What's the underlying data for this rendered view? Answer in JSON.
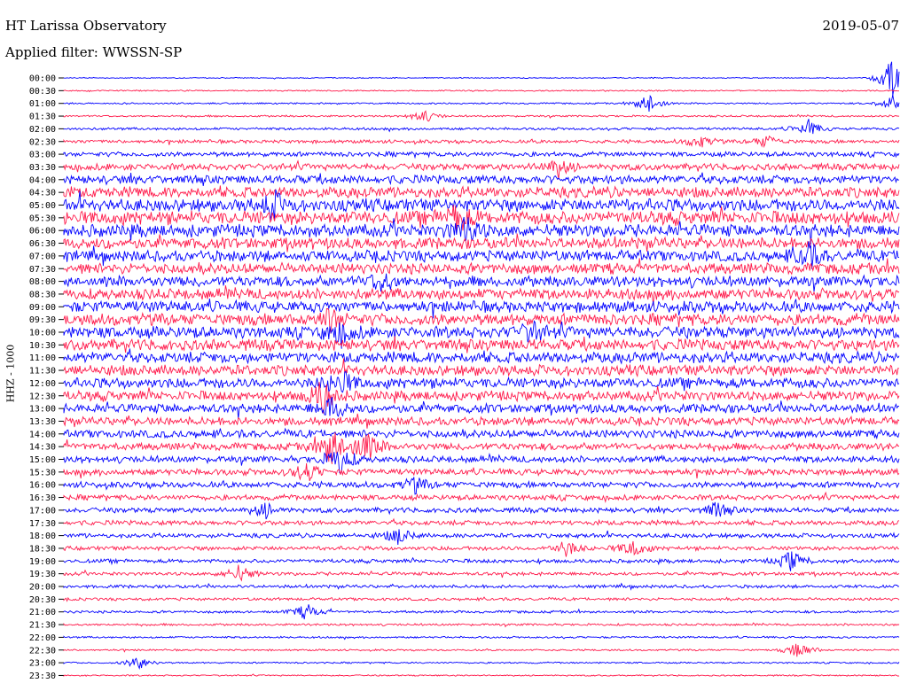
{
  "header": {
    "station": "HT Larissa Observatory",
    "date": "2019-05-07",
    "filter": "Applied filter: WWSSN-SP"
  },
  "chart_data": {
    "type": "line",
    "ylabel": "HHZ - 1000",
    "xlabel": "",
    "grid": false,
    "legend": "none",
    "colors": {
      "even_row": "#0000ff",
      "odd_row": "#ff1a4b"
    },
    "rows": [
      "00:00",
      "00:30",
      "01:00",
      "01:30",
      "02:00",
      "02:30",
      "03:00",
      "03:30",
      "04:00",
      "04:30",
      "05:00",
      "05:30",
      "06:00",
      "06:30",
      "07:00",
      "07:30",
      "08:00",
      "08:30",
      "09:00",
      "09:30",
      "10:00",
      "10:30",
      "11:00",
      "11:30",
      "12:00",
      "12:30",
      "13:00",
      "13:30",
      "14:00",
      "14:30",
      "15:00",
      "15:30",
      "16:00",
      "16:30",
      "17:00",
      "17:30",
      "18:00",
      "18:30",
      "19:00",
      "19:30",
      "20:00",
      "20:30",
      "21:00",
      "21:30",
      "22:00",
      "22:30",
      "23:00",
      "23:30"
    ],
    "noise_level": [
      0.6,
      0.8,
      1.0,
      1.2,
      1.6,
      2.2,
      3.0,
      4.2,
      5.5,
      6.8,
      8.0,
      8.5,
      8.0,
      7.2,
      7.0,
      6.8,
      6.8,
      7.0,
      7.2,
      7.4,
      7.4,
      7.2,
      7.0,
      6.8,
      6.5,
      6.2,
      5.8,
      5.2,
      5.0,
      4.6,
      4.2,
      4.0,
      3.8,
      3.4,
      3.2,
      3.0,
      2.8,
      2.6,
      2.4,
      2.2,
      2.0,
      1.8,
      1.6,
      1.4,
      1.2,
      1.1,
      1.0,
      0.9
    ],
    "events": [
      {
        "row": 0,
        "t": 0.99,
        "amp": 22
      },
      {
        "row": 2,
        "t": 0.7,
        "amp": 12
      },
      {
        "row": 2,
        "t": 0.99,
        "amp": 10
      },
      {
        "row": 3,
        "t": 0.43,
        "amp": 8
      },
      {
        "row": 4,
        "t": 0.89,
        "amp": 10
      },
      {
        "row": 5,
        "t": 0.76,
        "amp": 8
      },
      {
        "row": 5,
        "t": 0.84,
        "amp": 7
      },
      {
        "row": 7,
        "t": 0.59,
        "amp": 12
      },
      {
        "row": 10,
        "t": 0.25,
        "amp": 14
      },
      {
        "row": 11,
        "t": 0.47,
        "amp": 14
      },
      {
        "row": 12,
        "t": 0.48,
        "amp": 14
      },
      {
        "row": 14,
        "t": 0.89,
        "amp": 14
      },
      {
        "row": 16,
        "t": 0.38,
        "amp": 10
      },
      {
        "row": 19,
        "t": 0.32,
        "amp": 12
      },
      {
        "row": 20,
        "t": 0.33,
        "amp": 12
      },
      {
        "row": 20,
        "t": 0.56,
        "amp": 10
      },
      {
        "row": 24,
        "t": 0.33,
        "amp": 14
      },
      {
        "row": 25,
        "t": 0.31,
        "amp": 18
      },
      {
        "row": 26,
        "t": 0.32,
        "amp": 12
      },
      {
        "row": 29,
        "t": 0.32,
        "amp": 22
      },
      {
        "row": 29,
        "t": 0.36,
        "amp": 18
      },
      {
        "row": 30,
        "t": 0.33,
        "amp": 16
      },
      {
        "row": 31,
        "t": 0.29,
        "amp": 10
      },
      {
        "row": 32,
        "t": 0.42,
        "amp": 8
      },
      {
        "row": 34,
        "t": 0.24,
        "amp": 9
      },
      {
        "row": 34,
        "t": 0.78,
        "amp": 8
      },
      {
        "row": 36,
        "t": 0.4,
        "amp": 9
      },
      {
        "row": 37,
        "t": 0.6,
        "amp": 9
      },
      {
        "row": 37,
        "t": 0.68,
        "amp": 10
      },
      {
        "row": 38,
        "t": 0.87,
        "amp": 12
      },
      {
        "row": 39,
        "t": 0.21,
        "amp": 10
      },
      {
        "row": 42,
        "t": 0.29,
        "amp": 9
      },
      {
        "row": 45,
        "t": 0.88,
        "amp": 10
      },
      {
        "row": 46,
        "t": 0.09,
        "amp": 8
      }
    ]
  }
}
